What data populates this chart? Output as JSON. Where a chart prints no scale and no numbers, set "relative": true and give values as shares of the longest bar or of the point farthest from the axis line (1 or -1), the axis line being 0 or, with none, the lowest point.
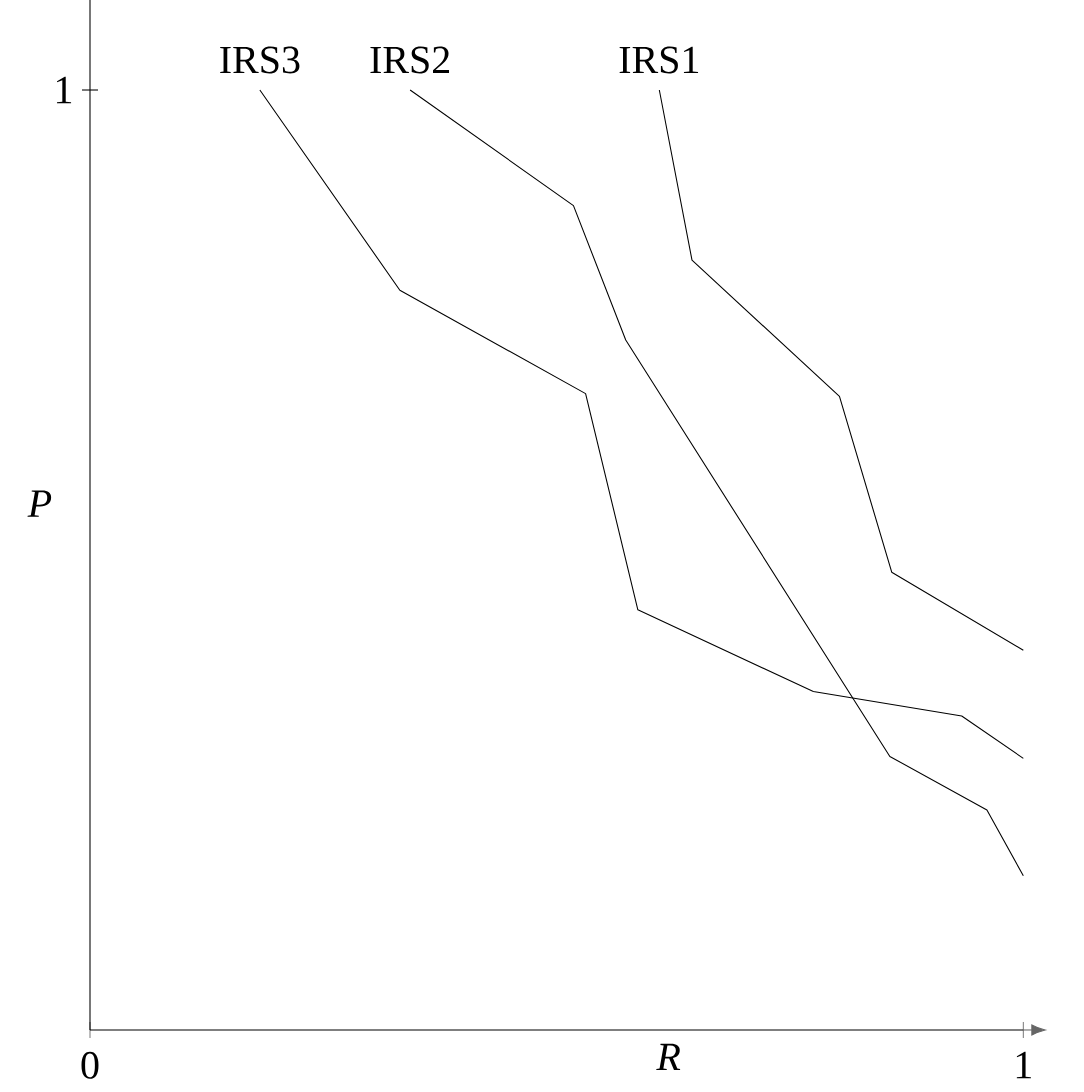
{
  "chart_data": {
    "type": "line",
    "xlabel": "*R*",
    "ylabel": "*P*",
    "relative": true,
    "annotations": [
      "1"
    ],
    "xlim": [
      0,
      1
    ],
    "xticks": [
      0,
      1
    ],
    "marker": "none",
    "line_style": "solid",
    "grid": false,
    "series": [
      {
        "name": "IRS1",
        "color": "#000000",
        "x": [
          0.61,
          0.645,
          0.803,
          0.859,
          1.0
        ],
        "values": [
          1.0,
          0.819,
          0.674,
          0.487,
          0.404
        ]
      },
      {
        "name": "IRS2",
        "color": "#000000",
        "x": [
          0.343,
          0.518,
          0.574,
          0.857,
          0.961,
          1.0
        ],
        "values": [
          1.0,
          0.877,
          0.734,
          0.291,
          0.234,
          0.164
        ]
      },
      {
        "name": "IRS3",
        "color": "#000000",
        "x": [
          0.182,
          0.332,
          0.531,
          0.587,
          0.775,
          0.934,
          1.0
        ],
        "values": [
          1.0,
          0.787,
          0.677,
          0.447,
          0.36,
          0.334,
          0.289
        ]
      }
    ]
  }
}
